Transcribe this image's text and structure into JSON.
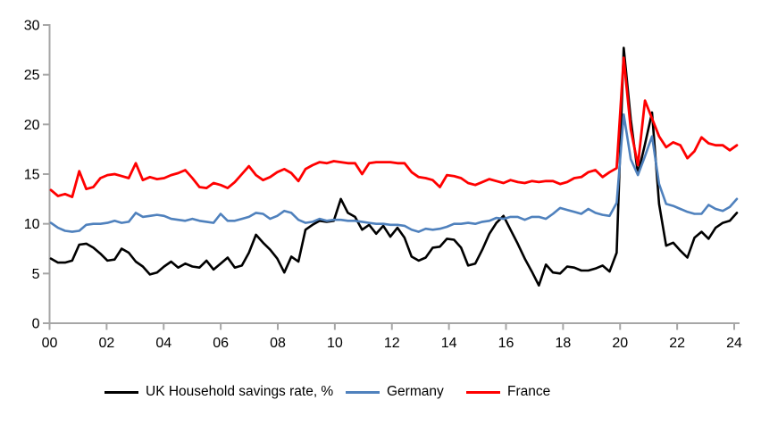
{
  "chart_data": {
    "type": "line",
    "frequency": "quarterly",
    "x_start": "2000Q1",
    "x_end": "2024Q2",
    "x_tick_labels": [
      "00",
      "02",
      "04",
      "06",
      "08",
      "10",
      "12",
      "14",
      "16",
      "18",
      "20",
      "22",
      "24"
    ],
    "y_ticks": [
      0,
      5,
      10,
      15,
      20,
      25,
      30
    ],
    "ylim": [
      0,
      30
    ],
    "grid": false,
    "legend_position": "bottom",
    "axis_color": "#A6A6A6",
    "series": [
      {
        "name": "UK Household savings rate, %",
        "color": "#000000",
        "values": [
          6.5,
          6.1,
          6.1,
          6.3,
          7.9,
          8.0,
          7.6,
          7.0,
          6.3,
          6.4,
          7.5,
          7.1,
          6.2,
          5.7,
          4.9,
          5.1,
          5.7,
          6.2,
          5.6,
          6.0,
          5.7,
          5.6,
          6.3,
          5.4,
          6.0,
          6.6,
          5.6,
          5.8,
          7.1,
          8.9,
          8.1,
          7.4,
          6.5,
          5.1,
          6.7,
          6.2,
          9.4,
          9.9,
          10.3,
          10.2,
          10.3,
          12.5,
          11.1,
          10.7,
          9.4,
          9.9,
          9.0,
          9.8,
          8.7,
          9.6,
          8.6,
          6.7,
          6.3,
          6.6,
          7.6,
          7.7,
          8.5,
          8.4,
          7.6,
          5.8,
          6.0,
          7.4,
          9.0,
          10.1,
          10.8,
          9.4,
          8.0,
          6.5,
          5.2,
          3.8,
          5.9,
          5.1,
          5.0,
          5.7,
          5.6,
          5.3,
          5.3,
          5.5,
          5.8,
          5.2,
          7.1,
          27.7,
          20.5,
          15.0,
          18.0,
          21.2,
          12.0,
          7.8,
          8.1,
          7.3,
          6.6,
          8.6,
          9.2,
          8.5,
          9.6,
          10.1,
          10.3,
          11.1
        ]
      },
      {
        "name": "Germany",
        "color": "#4F81BD",
        "values": [
          10.1,
          9.6,
          9.3,
          9.2,
          9.3,
          9.9,
          10.0,
          10.0,
          10.1,
          10.3,
          10.1,
          10.2,
          11.1,
          10.7,
          10.8,
          10.9,
          10.8,
          10.5,
          10.4,
          10.3,
          10.5,
          10.3,
          10.2,
          10.1,
          11.0,
          10.3,
          10.3,
          10.5,
          10.7,
          11.1,
          11.0,
          10.5,
          10.8,
          11.3,
          11.1,
          10.4,
          10.1,
          10.2,
          10.5,
          10.3,
          10.4,
          10.4,
          10.3,
          10.3,
          10.2,
          10.1,
          10.0,
          10.0,
          9.9,
          9.9,
          9.8,
          9.4,
          9.2,
          9.5,
          9.4,
          9.5,
          9.7,
          10.0,
          10.0,
          10.1,
          10.0,
          10.2,
          10.3,
          10.6,
          10.5,
          10.7,
          10.7,
          10.4,
          10.7,
          10.7,
          10.5,
          11.0,
          11.6,
          11.4,
          11.2,
          11.0,
          11.5,
          11.1,
          10.9,
          10.8,
          12.1,
          21.0,
          16.5,
          14.9,
          16.8,
          18.8,
          14.0,
          12.0,
          11.8,
          11.5,
          11.2,
          11.0,
          11.0,
          11.9,
          11.5,
          11.3,
          11.7,
          12.5
        ]
      },
      {
        "name": "France",
        "color": "#FF0000",
        "values": [
          13.4,
          12.8,
          13.0,
          12.7,
          15.3,
          13.5,
          13.7,
          14.6,
          14.9,
          15.0,
          14.8,
          14.6,
          16.1,
          14.4,
          14.7,
          14.5,
          14.6,
          14.9,
          15.1,
          15.4,
          14.6,
          13.7,
          13.6,
          14.1,
          13.9,
          13.6,
          14.2,
          15.0,
          15.8,
          14.9,
          14.4,
          14.7,
          15.2,
          15.5,
          15.1,
          14.3,
          15.5,
          15.9,
          16.2,
          16.1,
          16.3,
          16.2,
          16.1,
          16.1,
          15.0,
          16.1,
          16.2,
          16.2,
          16.2,
          16.1,
          16.1,
          15.2,
          14.7,
          14.6,
          14.4,
          13.7,
          14.9,
          14.8,
          14.6,
          14.1,
          13.9,
          14.2,
          14.5,
          14.3,
          14.1,
          14.4,
          14.2,
          14.1,
          14.3,
          14.2,
          14.3,
          14.3,
          14.0,
          14.2,
          14.6,
          14.7,
          15.2,
          15.4,
          14.7,
          15.2,
          15.6,
          26.7,
          19.5,
          15.9,
          22.4,
          20.6,
          18.8,
          17.7,
          18.2,
          17.9,
          16.6,
          17.3,
          18.7,
          18.1,
          17.9,
          17.9,
          17.4,
          17.9
        ]
      }
    ]
  },
  "legend": {
    "uk_label": "UK Household savings rate, %",
    "germany_label": "Germany",
    "france_label": "France"
  }
}
